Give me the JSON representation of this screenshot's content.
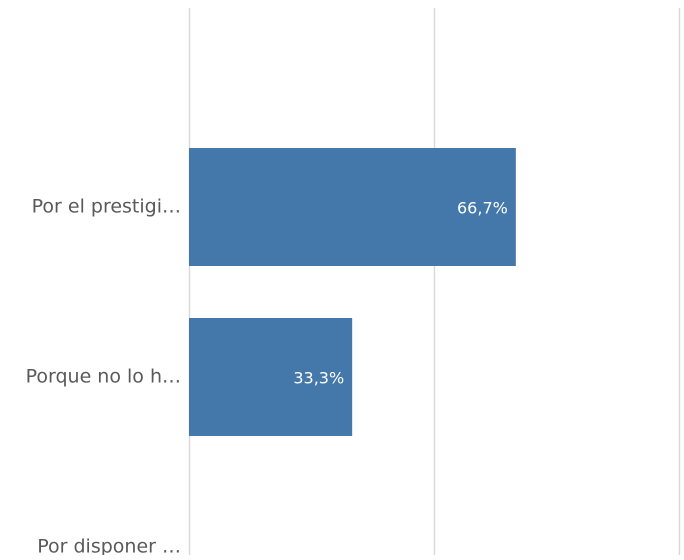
{
  "chart_data": {
    "type": "bar",
    "orientation": "horizontal",
    "categories": [
      "Por el prestigi…",
      "Porque no lo h…",
      "Por disponer …"
    ],
    "values": [
      66.7,
      33.3,
      0
    ],
    "value_labels": [
      "66,7%",
      "33,3%",
      ""
    ],
    "xlim": [
      0,
      100
    ],
    "grid": true,
    "bar_color": "#4477aa",
    "gridline_color": "#d9d9d9",
    "label_color": "#595959"
  }
}
